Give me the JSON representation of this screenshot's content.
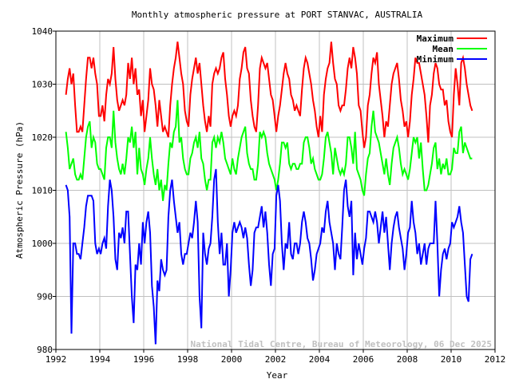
{
  "chart_data": {
    "type": "line",
    "title": "Monthly atmospheric pressure at PORT STANVAC, AUSTRALIA",
    "xlabel": "Year",
    "ylabel": "Atmospheric Pressure (hPa)",
    "xlim": [
      1992,
      2012
    ],
    "ylim": [
      980,
      1040
    ],
    "xticks": [
      "1992",
      "1994",
      "1996",
      "1998",
      "2000",
      "2002",
      "2004",
      "2006",
      "2008",
      "2010",
      "2012"
    ],
    "yticks": [
      "980",
      "990",
      "1000",
      "1010",
      "1020",
      "1030",
      "1040"
    ],
    "grid": true,
    "legend_position": "top-right",
    "watermark": "National Tidal Centre, Bureau of Meteorology, 06 Dec 2025",
    "series_names": {
      "max": "Maximum",
      "mean": "Mean",
      "min": "Minimum"
    },
    "colors": {
      "max": "#ff0000",
      "mean": "#00ff00",
      "min": "#0000ff",
      "grid": "#c0c0c0",
      "watermark": "#c0c0c0"
    },
    "monthly": [
      {
        "year": 1992,
        "max": [
          null,
          null,
          null,
          null,
          null,
          1028,
          1031,
          1033,
          1030,
          1032,
          1026,
          1021
        ],
        "mean": [
          null,
          null,
          null,
          null,
          null,
          1021,
          1018,
          1014,
          1015,
          1016,
          1013,
          1012
        ],
        "min": [
          null,
          null,
          null,
          null,
          null,
          1011,
          1010,
          1005,
          983,
          1000,
          1000,
          998
        ]
      },
      {
        "year": 1993,
        "max": [
          1021,
          1022,
          1021,
          1026,
          1031,
          1035,
          1035,
          1033,
          1035,
          1032,
          1030,
          1024
        ],
        "mean": [
          1012,
          1013,
          1012,
          1016,
          1020,
          1022,
          1023,
          1018,
          1020,
          1019,
          1015,
          1014
        ],
        "min": [
          998,
          997,
          1000,
          1003,
          1007,
          1009,
          1009,
          1009,
          1008,
          1000,
          998,
          999
        ]
      },
      {
        "year": 1994,
        "max": [
          1024,
          1026,
          1023,
          1028,
          1031,
          1030,
          1032,
          1037,
          1031,
          1027,
          1025,
          1026
        ],
        "mean": [
          1014,
          1013,
          1012,
          1018,
          1020,
          1020,
          1018,
          1025,
          1019,
          1016,
          1014,
          1013
        ],
        "min": [
          998,
          1000,
          1001,
          999,
          1007,
          1012,
          1010,
          1005,
          997,
          995,
          1002,
          1001
        ]
      },
      {
        "year": 1995,
        "max": [
          1027,
          1026,
          1028,
          1034,
          1031,
          1035,
          1030,
          1033,
          1028,
          1029,
          1024,
          1027
        ],
        "mean": [
          1015,
          1013,
          1016,
          1020,
          1019,
          1022,
          1018,
          1021,
          1013,
          1018,
          1014,
          1013
        ],
        "min": [
          1003,
          1000,
          1006,
          1006,
          998,
          990,
          985,
          996,
          995,
          1000,
          996,
          1004
        ]
      },
      {
        "year": 1996,
        "max": [
          1021,
          1024,
          1027,
          1033,
          1030,
          1029,
          1026,
          1022,
          1027,
          1024,
          1021,
          1022
        ],
        "mean": [
          1011,
          1014,
          1016,
          1020,
          1016,
          1013,
          1011,
          1014,
          1010,
          1012,
          1008,
          1011
        ],
        "min": [
          1000,
          1004,
          1006,
          1002,
          992,
          988,
          981,
          993,
          991,
          997,
          995,
          994
        ]
      },
      {
        "year": 1997,
        "max": [
          1021,
          1020,
          1026,
          1030,
          1033,
          1035,
          1038,
          1035,
          1032,
          1030,
          1025,
          1023
        ],
        "mean": [
          1010,
          1015,
          1019,
          1018,
          1021,
          1022,
          1027,
          1019,
          1020,
          1016,
          1014,
          1013
        ],
        "min": [
          995,
          1005,
          1010,
          1012,
          1008,
          1005,
          1002,
          1004,
          998,
          996,
          998,
          998
        ]
      },
      {
        "year": 1998,
        "max": [
          1022,
          1028,
          1031,
          1033,
          1035,
          1032,
          1034,
          1030,
          1026,
          1023,
          1021,
          1024
        ],
        "mean": [
          1013,
          1016,
          1017,
          1019,
          1020,
          1018,
          1021,
          1016,
          1015,
          1012,
          1010,
          1012
        ],
        "min": [
          1000,
          1002,
          1001,
          1004,
          1008,
          1004,
          990,
          984,
          1002,
          998,
          996,
          999
        ]
      },
      {
        "year": 1999,
        "max": [
          1022,
          1030,
          1032,
          1033,
          1032,
          1033,
          1035,
          1036,
          1031,
          1028,
          1024,
          1022
        ],
        "mean": [
          1012,
          1019,
          1020,
          1018,
          1020,
          1019,
          1021,
          1019,
          1016,
          1015,
          1014,
          1013
        ],
        "min": [
          1000,
          1005,
          1012,
          1014,
          1004,
          998,
          1002,
          996,
          996,
          1000,
          990,
          995
        ]
      },
      {
        "year": 2000,
        "max": [
          1024,
          1025,
          1024,
          1026,
          1031,
          1033,
          1036,
          1037,
          1033,
          1032,
          1027,
          1024
        ],
        "mean": [
          1016,
          1014,
          1013,
          1016,
          1018,
          1020,
          1021,
          1022,
          1017,
          1015,
          1014,
          1014
        ],
        "min": [
          1002,
          1004,
          1002,
          1003,
          1004,
          1003,
          1001,
          1003,
          1001,
          996,
          992,
          995
        ]
      },
      {
        "year": 2001,
        "max": [
          1022,
          1021,
          1026,
          1033,
          1035,
          1034,
          1033,
          1034,
          1031,
          1028,
          1027,
          1024
        ],
        "mean": [
          1012,
          1012,
          1015,
          1021,
          1020,
          1021,
          1020,
          1017,
          1015,
          1014,
          1013,
          1012
        ],
        "min": [
          1002,
          1003,
          1003,
          1005,
          1007,
          1003,
          1006,
          1002,
          996,
          992,
          998,
          999
        ]
      },
      {
        "year": 2002,
        "max": [
          1021,
          1024,
          1026,
          1029,
          1032,
          1034,
          1032,
          1031,
          1028,
          1027,
          1025,
          1026
        ],
        "mean": [
          1010,
          1012,
          1015,
          1019,
          1019,
          1018,
          1019,
          1015,
          1014,
          1015,
          1015,
          1014
        ],
        "min": [
          1009,
          1011,
          1008,
          1000,
          995,
          1000,
          999,
          1004,
          998,
          997,
          1000,
          1000
        ]
      },
      {
        "year": 2003,
        "max": [
          1025,
          1024,
          1029,
          1033,
          1035,
          1034,
          1032,
          1030,
          1027,
          1025,
          1022,
          1020
        ],
        "mean": [
          1014,
          1015,
          1015,
          1019,
          1020,
          1020,
          1018,
          1015,
          1016,
          1014,
          1013,
          1012
        ],
        "min": [
          998,
          1000,
          1004,
          1006,
          1004,
          1001,
          1000,
          997,
          993,
          995,
          998,
          999
        ]
      },
      {
        "year": 2004,
        "max": [
          1024,
          1021,
          1028,
          1031,
          1033,
          1034,
          1038,
          1034,
          1031,
          1030,
          1026,
          1025
        ],
        "mean": [
          1012,
          1013,
          1016,
          1020,
          1021,
          1019,
          1017,
          1013,
          1018,
          1016,
          1014,
          1013
        ],
        "min": [
          1000,
          1003,
          1002,
          1006,
          1008,
          1004,
          1002,
          1000,
          995,
          1000,
          998,
          997
        ]
      },
      {
        "year": 2005,
        "max": [
          1026,
          1026,
          1029,
          1033,
          1035,
          1033,
          1037,
          1035,
          1032,
          1026,
          1025,
          1021
        ],
        "mean": [
          1014,
          1013,
          1015,
          1020,
          1020,
          1018,
          1015,
          1021,
          1014,
          1013,
          1012,
          1010
        ],
        "min": [
          1003,
          1010,
          1012,
          1007,
          1005,
          1008,
          994,
          1002,
          997,
          1000,
          998,
          996
        ]
      },
      {
        "year": 2006,
        "max": [
          1018,
          1020,
          1026,
          1028,
          1032,
          1035,
          1034,
          1036,
          1030,
          1027,
          1024,
          1020
        ],
        "mean": [
          1009,
          1013,
          1016,
          1017,
          1022,
          1025,
          1021,
          1020,
          1019,
          1017,
          1015,
          1013
        ],
        "min": [
          999,
          1001,
          1006,
          1006,
          1005,
          1004,
          1006,
          1004,
          1000,
          1003,
          1006,
          1002
        ]
      },
      {
        "year": 2007,
        "max": [
          1023,
          1022,
          1026,
          1030,
          1032,
          1033,
          1034,
          1031,
          1027,
          1025,
          1022,
          1023
        ],
        "mean": [
          1016,
          1013,
          1011,
          1015,
          1018,
          1019,
          1020,
          1018,
          1015,
          1013,
          1014,
          1013
        ],
        "min": [
          1005,
          1000,
          995,
          1000,
          1003,
          1005,
          1006,
          1003,
          1001,
          999,
          995,
          998
        ]
      },
      {
        "year": 2008,
        "max": [
          1020,
          1023,
          1028,
          1031,
          1035,
          1034,
          1034,
          1032,
          1030,
          1028,
          1024,
          1019
        ],
        "mean": [
          1012,
          1014,
          1017,
          1020,
          1019,
          1020,
          1016,
          1019,
          1014,
          1010,
          1010,
          1011
        ],
        "min": [
          1002,
          1003,
          1008,
          1004,
          1002,
          998,
          1000,
          996,
          998,
          1000,
          996,
          999
        ]
      },
      {
        "year": 2009,
        "max": [
          1026,
          1028,
          1032,
          1034,
          1033,
          1030,
          1029,
          1029,
          1026,
          1027,
          1023,
          1021
        ],
        "mean": [
          1013,
          1015,
          1018,
          1019,
          1014,
          1016,
          1013,
          1015,
          1014,
          1016,
          1013,
          1013
        ],
        "min": [
          1000,
          1000,
          1000,
          1008,
          1000,
          990,
          995,
          998,
          999,
          997,
          999,
          1000
        ]
      },
      {
        "year": 2010,
        "max": [
          1020,
          1028,
          1033,
          1030,
          1026,
          1034,
          1035,
          1033,
          1030,
          1028,
          1026,
          1025
        ],
        "mean": [
          1014,
          1018,
          1017,
          1017,
          1021,
          1022,
          1017,
          1019,
          1018,
          1017,
          1016,
          1016
        ],
        "min": [
          1004,
          1003,
          1004,
          1005,
          1007,
          1004,
          1002,
          996,
          990,
          989,
          997,
          998
        ]
      }
    ]
  }
}
